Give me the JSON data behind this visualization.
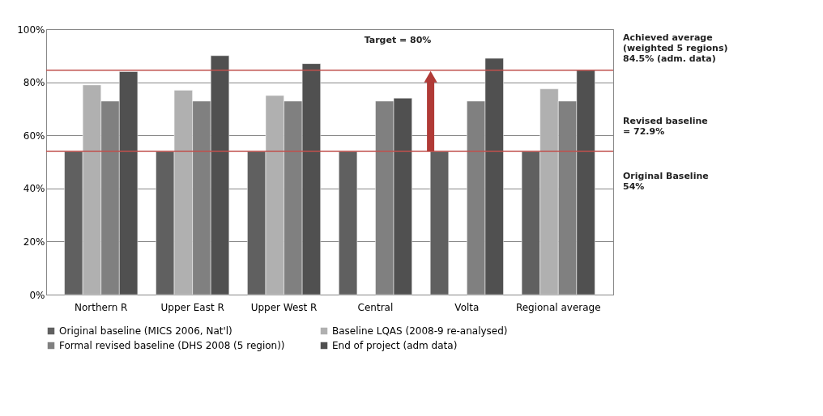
{
  "chart_data": {
    "type": "bar",
    "categories": [
      "Northern R",
      "Upper East R",
      "Upper West R",
      "Central",
      "Volta",
      "Regional average"
    ],
    "series": [
      {
        "name": "Original baseline (MICS 2006, Nat'l)",
        "color": "#606060",
        "values": [
          54,
          54,
          54,
          54,
          54,
          54
        ]
      },
      {
        "name": "Baseline LQAS (2008-9 re-analysed)",
        "color": "#b0b0b0",
        "values": [
          79,
          77,
          75,
          null,
          null,
          77.5
        ]
      },
      {
        "name": "Formal revised baseline (DHS 2008 (5 region))",
        "color": "#808080",
        "values": [
          72.9,
          72.9,
          72.9,
          72.9,
          72.9,
          72.9
        ]
      },
      {
        "name": "End of project (adm data)",
        "color": "#505050",
        "values": [
          84,
          90,
          87,
          74,
          89,
          84.5
        ]
      }
    ],
    "ylim": [
      0,
      100
    ],
    "yticks": [
      {
        "value": 0,
        "label": "0%"
      },
      {
        "value": 20,
        "label": "20%"
      },
      {
        "value": 40,
        "label": "40%"
      },
      {
        "value": 60,
        "label": "60%"
      },
      {
        "value": 80,
        "label": "80%"
      },
      {
        "value": 100,
        "label": "100%"
      }
    ],
    "ref_lines": [
      {
        "axis": "y",
        "value": 84.5,
        "label": "Achieved average\n(weighted 5 regions)\n84.5% (adm. data)",
        "color": "#c0504d"
      },
      {
        "axis": "y",
        "value": 54,
        "label": "Original Baseline\n54%",
        "color": "#c0504d"
      }
    ],
    "annotations": [
      "Target = 80%",
      "Revised baseline\n= 72.9%"
    ],
    "grid": "y",
    "legend": "bottom"
  }
}
